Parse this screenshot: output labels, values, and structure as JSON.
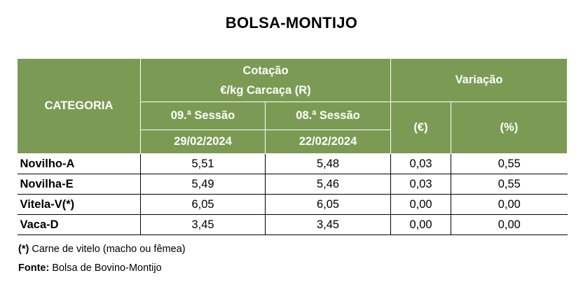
{
  "title": "BOLSA-MONTIJO",
  "table": {
    "category_header": "CATEGORIA",
    "quote_header_line1": "Cotação",
    "quote_header_line2": "€/kg Carcaça (R)",
    "variation_header": "Variação",
    "session_current": "09.ª Sessão",
    "session_previous": "08.ª Sessão",
    "date_current": "29/02/2024",
    "date_previous": "22/02/2024",
    "var_euro_header": "(€)",
    "var_pct_header": "(%)",
    "rows": [
      {
        "category": "Novilho-A",
        "current": "5,51",
        "previous": "5,48",
        "var_euro": "0,03",
        "var_pct": "0,55"
      },
      {
        "category": "Novilha-E",
        "current": "5,49",
        "previous": "5,46",
        "var_euro": "0,03",
        "var_pct": "0,55"
      },
      {
        "category": "Vitela-V(*)",
        "current": "6,05",
        "previous": "6,05",
        "var_euro": "0,00",
        "var_pct": "0,00"
      },
      {
        "category": "Vaca-D",
        "current": "3,45",
        "previous": "3,45",
        "var_euro": "0,00",
        "var_pct": "0,00"
      }
    ]
  },
  "footnotes": {
    "note_marker": "(*)",
    "note_text": " Carne de vitelo (macho ou fêmea)",
    "source_label": "Fonte:",
    "source_text": " Bolsa de Bovino-Montijo"
  },
  "colors": {
    "header_background": "#7b9b55",
    "header_text": "#ffffff"
  }
}
